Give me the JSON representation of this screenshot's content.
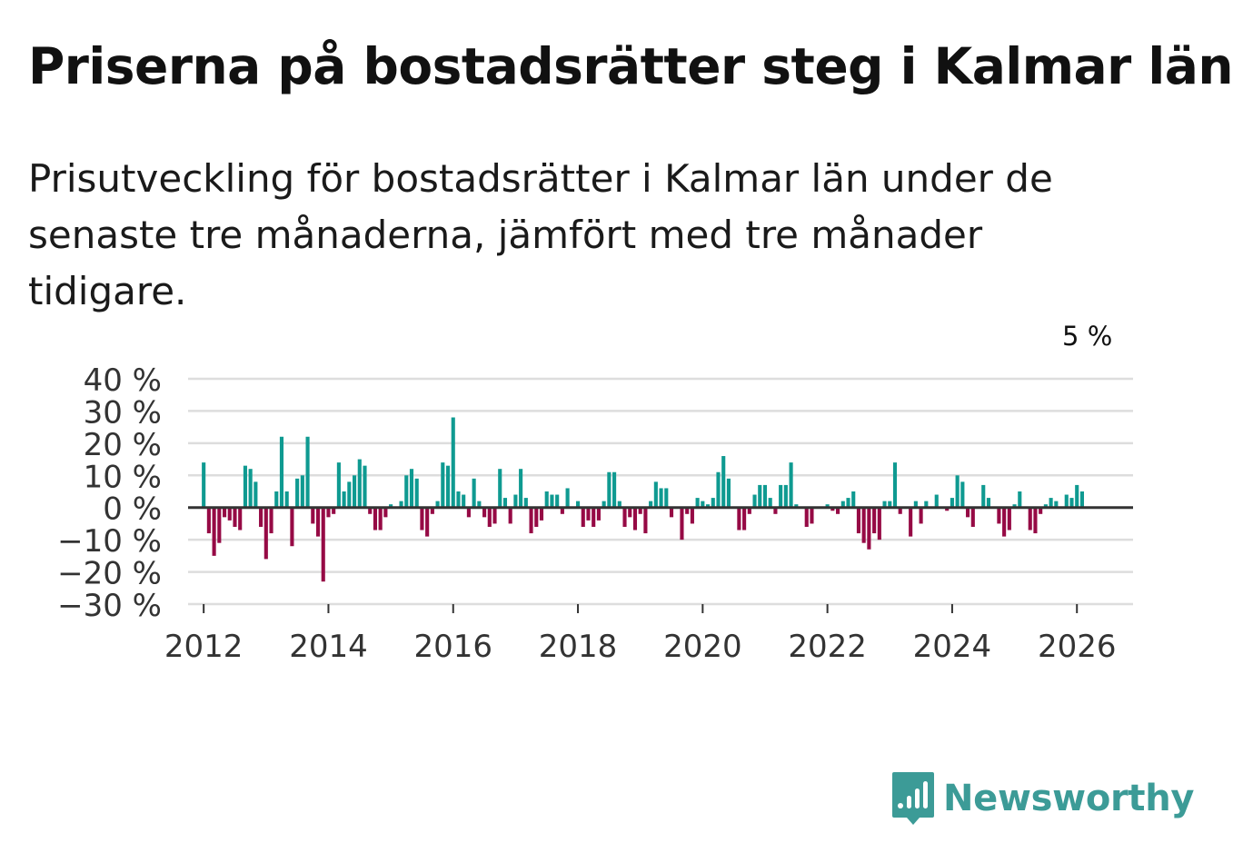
{
  "title": "Priserna på bostadsrätter steg i Kalmar län",
  "subtitle": "Prisutveckling för bostadsrätter i Kalmar län under de senaste tre månaderna, jämfört med tre månader tidigare.",
  "brand": {
    "name": "Newsworthy",
    "logo_icon": "bar-chart-speech-bubble-icon"
  },
  "colors": {
    "positive": "#0f9a91",
    "negative": "#960a45",
    "grid": "#dddddd",
    "zero_line": "#333333",
    "brand": "#3c9b97"
  },
  "chart_data": {
    "type": "bar",
    "title": "Priserna på bostadsrätter steg i Kalmar län",
    "xlabel": "",
    "ylabel": "",
    "ylim": [
      -30,
      40
    ],
    "yticks": [
      40,
      30,
      20,
      10,
      0,
      -10,
      -20,
      -30
    ],
    "ytick_labels": [
      "40 %",
      "30 %",
      "20 %",
      "10 %",
      "0 %",
      "−10 %",
      "−20 %",
      "−30 %"
    ],
    "xlim": [
      2011.75,
      2026.9
    ],
    "xticks": [
      2012,
      2014,
      2016,
      2018,
      2020,
      2022,
      2024,
      2026
    ],
    "xtick_labels": [
      "2012",
      "2014",
      "2016",
      "2018",
      "2020",
      "2022",
      "2024",
      "2026"
    ],
    "x_start": 2012.0,
    "x_step": 0.083333,
    "annotation": {
      "text": "5 %",
      "series_index": 170
    },
    "values": [
      14,
      -8,
      -15,
      -11,
      -3,
      -4,
      -6,
      -7,
      13,
      12,
      8,
      -6,
      -16,
      -8,
      5,
      22,
      5,
      -12,
      9,
      10,
      22,
      -5,
      -9,
      -23,
      -3,
      -2,
      14,
      5,
      8,
      10,
      15,
      13,
      -2,
      -7,
      -7,
      -3,
      1,
      0,
      2,
      10,
      12,
      9,
      -7,
      -9,
      -2,
      2,
      14,
      13,
      28,
      5,
      4,
      -3,
      9,
      2,
      -3,
      -6,
      -5,
      12,
      3,
      -5,
      4,
      12,
      3,
      -8,
      -6,
      -4,
      5,
      4,
      4,
      -2,
      6,
      0,
      2,
      -6,
      -4,
      -6,
      -4,
      2,
      11,
      11,
      2,
      -6,
      -3,
      -7,
      -2,
      -8,
      2,
      8,
      6,
      6,
      -3,
      0,
      -10,
      -2,
      -5,
      3,
      2,
      1,
      3,
      11,
      16,
      9,
      0,
      -7,
      -7,
      -2,
      4,
      7,
      7,
      3,
      -2,
      7,
      7,
      14,
      1,
      0,
      -6,
      -5,
      0,
      0,
      1,
      -1,
      -2,
      2,
      3,
      5,
      -8,
      -11,
      -13,
      -8,
      -10,
      2,
      2,
      14,
      -2,
      0,
      -9,
      2,
      -5,
      2,
      0,
      4,
      0,
      -1,
      3,
      10,
      8,
      -3,
      -6,
      0,
      7,
      3,
      0,
      -5,
      -9,
      -7,
      1,
      5,
      0,
      -7,
      -8,
      -2,
      1,
      3,
      2,
      0,
      4,
      3,
      7,
      5
    ]
  }
}
